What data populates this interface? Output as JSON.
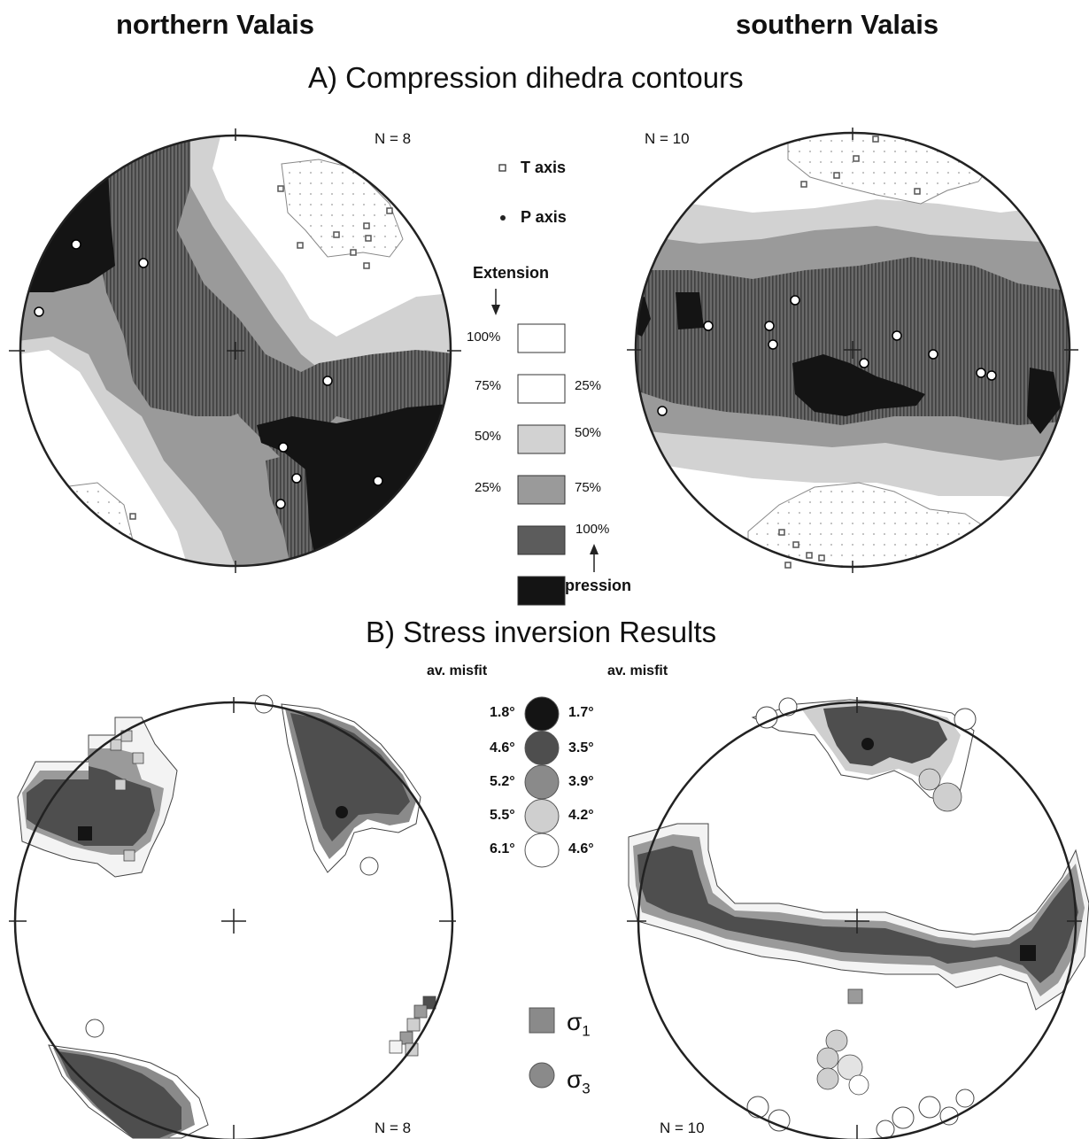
{
  "headings": {
    "north": "northern Valais",
    "south": "southern Valais",
    "section_a": "A) Compression dihedra contours",
    "section_b": "B) Stress inversion Results"
  },
  "panel_a": {
    "north_n": "N = 8",
    "south_n": "N = 10"
  },
  "panel_b": {
    "north_n": "N = 8",
    "south_n": "N = 10"
  },
  "legend_a": {
    "t_axis": "T axis",
    "p_axis": "P axis",
    "extension": "Extension",
    "compression": "Compression",
    "left_pcts": [
      "100%",
      "75%",
      "50%",
      "25%"
    ],
    "right_pcts": [
      "25%",
      "50%",
      "75%",
      "100%"
    ],
    "box_colors": [
      "#ffffff",
      "#ffffff",
      "#d2d2d2",
      "#9a9a9a",
      "#5c5c5c",
      "#141414"
    ]
  },
  "legend_b": {
    "header_left": "av. misfit",
    "header_right": "av. misfit",
    "left_values": [
      "1.8°",
      "4.6°",
      "5.2°",
      "5.5°",
      "6.1°"
    ],
    "right_values": [
      "1.7°",
      "3.5°",
      "3.9°",
      "4.2°",
      "4.6°"
    ],
    "circle_colors": [
      "#141414",
      "#4e4e4e",
      "#8a8a8a",
      "#cfcfcf",
      "#ffffff"
    ],
    "sigma1": "σ",
    "sigma1_sub": "1",
    "sigma3": "σ",
    "sigma3_sub": "3"
  },
  "colors": {
    "c100": "#141414",
    "c75": "#5c5c5c",
    "c50": "#9a9a9a",
    "c25": "#d2d2d2",
    "c0": "#ffffff",
    "outline": "#222222"
  }
}
